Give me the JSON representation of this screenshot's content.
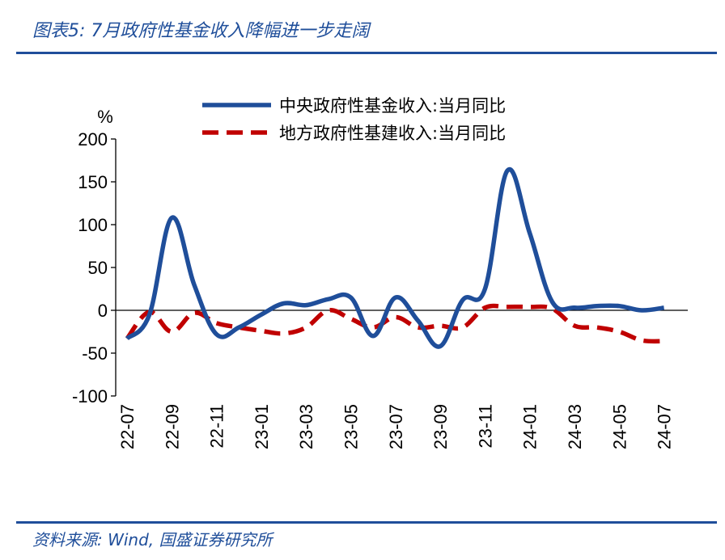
{
  "header": {
    "title": "图表5:  7月政府性基金收入降幅进一步走阔"
  },
  "footer": {
    "source": "资料来源:  Wind,  国盛证券研究所"
  },
  "chart_data": {
    "type": "line",
    "title": "",
    "ylabel": "%",
    "xlabel": "",
    "ylim": [
      -100,
      200
    ],
    "yticks": [
      200,
      150,
      100,
      50,
      0,
      -50,
      -100
    ],
    "ytick_labels": [
      "200",
      "150",
      "100",
      "50",
      "0",
      "-50",
      "-100"
    ],
    "x": [
      "22-07",
      "22-08",
      "22-09",
      "22-10",
      "22-11",
      "22-12",
      "23-01",
      "23-02",
      "23-03",
      "23-04",
      "23-05",
      "23-06",
      "23-07",
      "23-08",
      "23-09",
      "23-10",
      "23-11",
      "23-12",
      "24-01",
      "24-02",
      "24-03",
      "24-04",
      "24-05",
      "24-06",
      "24-07"
    ],
    "xtick_labels": [
      "22-07",
      "22-09",
      "22-11",
      "23-01",
      "23-03",
      "23-05",
      "23-07",
      "23-09",
      "23-11",
      "24-01",
      "24-03",
      "24-05",
      "24-07"
    ],
    "legend_position": "top",
    "grid": false,
    "series": [
      {
        "name": "中央政府性基金收入:当月同比",
        "color": "#1f4e9a",
        "style": "solid",
        "values": [
          -33,
          -5,
          108,
          30,
          -28,
          -20,
          -5,
          8,
          6,
          13,
          15,
          -30,
          15,
          -12,
          -42,
          12,
          25,
          163,
          90,
          10,
          3,
          5,
          5,
          0,
          3
        ]
      },
      {
        "name": "地方政府性基建收入:当月同比",
        "color": "#c00000",
        "style": "dashed",
        "values": [
          -33,
          -2,
          -25,
          -3,
          -15,
          -20,
          -24,
          -27,
          -20,
          0,
          -10,
          -20,
          -8,
          -20,
          -18,
          -20,
          3,
          4,
          4,
          2,
          -18,
          -20,
          -25,
          -35,
          -36
        ]
      }
    ]
  }
}
